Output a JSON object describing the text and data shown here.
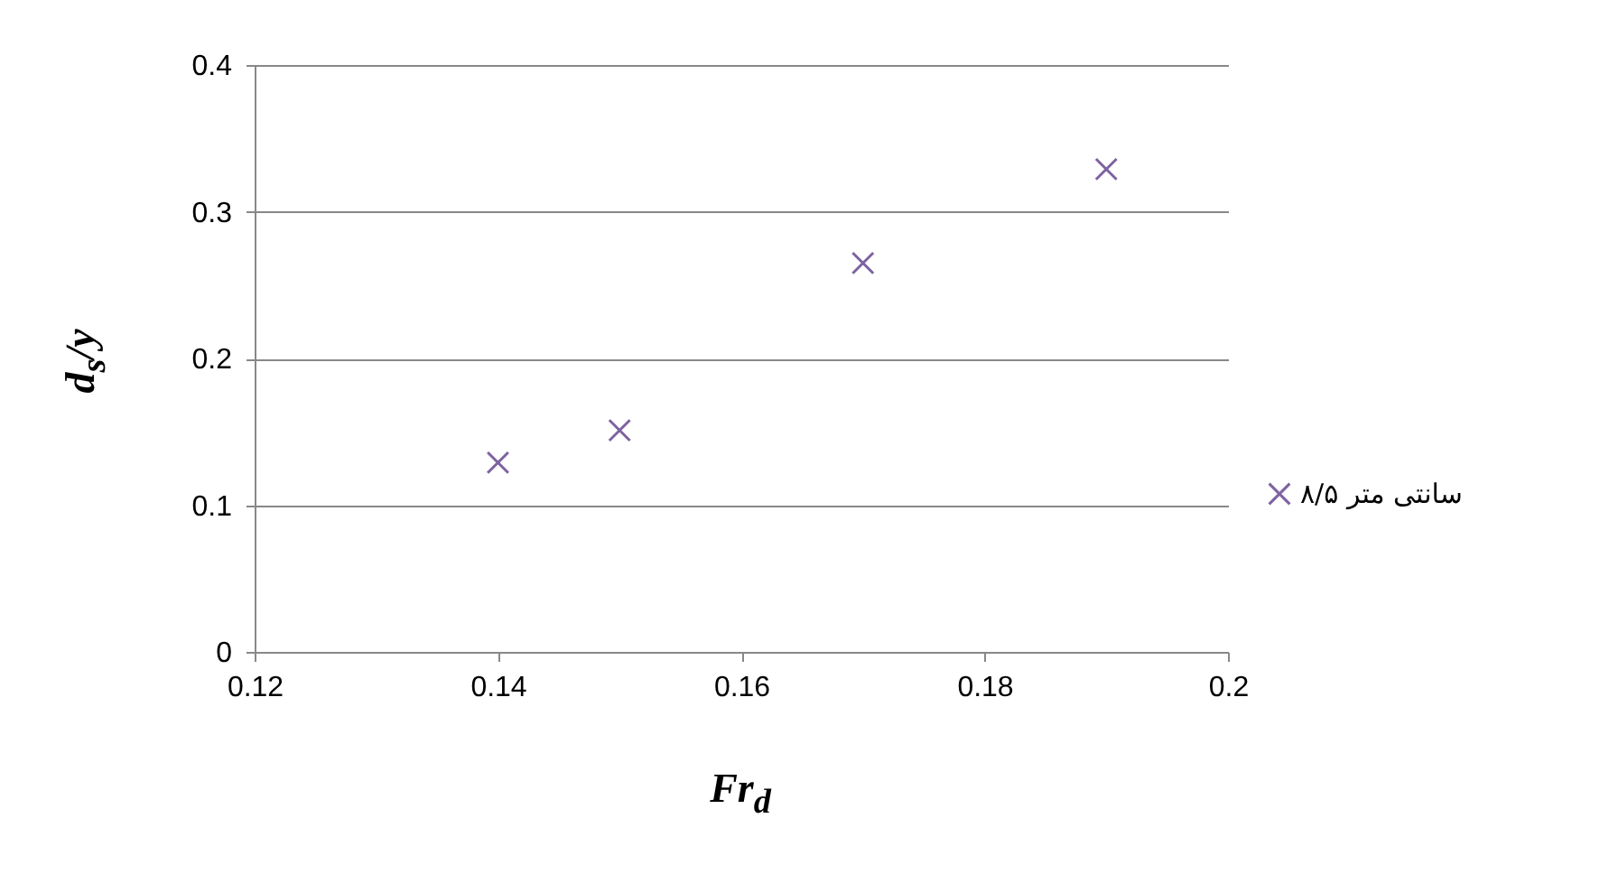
{
  "chart_data": {
    "type": "scatter",
    "xlabel": "Fr$_{d}$",
    "ylabel": "d$_{s}$/y",
    "x": [
      0.14,
      0.15,
      0.17,
      0.19
    ],
    "series": [
      {
        "name": "۸/۵ سانتی متر",
        "color": "#7e62a1",
        "values": [
          0.129,
          0.151,
          0.265,
          0.329
        ]
      }
    ],
    "xlim": [
      0.12,
      0.2
    ],
    "xticks": [
      0.12,
      0.14,
      0.16,
      0.18,
      0.2
    ],
    "ylim": [
      0,
      0.4
    ],
    "yticks": [
      0,
      0.1,
      0.2,
      0.3,
      0.4
    ],
    "grid": "y",
    "legend": "right",
    "marker": "cross"
  }
}
